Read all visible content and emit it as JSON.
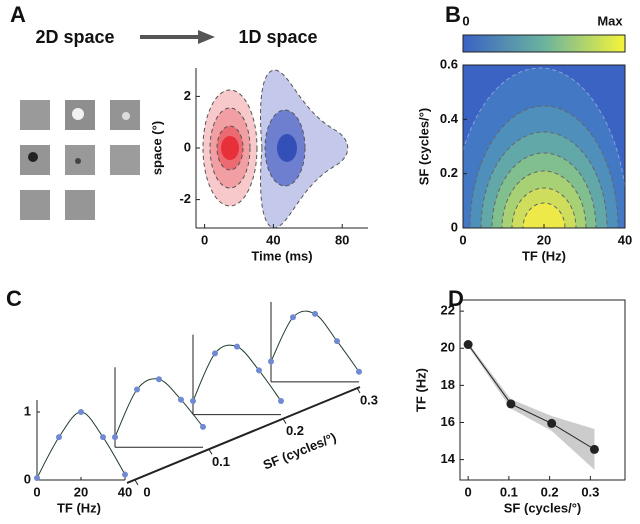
{
  "chart_data": [
    {
      "type": "contour",
      "label": "A",
      "annotations": [
        "2D space",
        "1D space"
      ],
      "xlabel": "Time (ms)",
      "ylabel": "space (°)",
      "xlim": [
        -5,
        95
      ],
      "xticks": [
        0,
        40,
        80
      ],
      "ylim": [
        -3.1,
        3.1
      ],
      "yticks": [
        -2,
        0,
        2
      ]
    },
    {
      "type": "contour",
      "label": "B",
      "colorbar_labels": [
        "0",
        "Max"
      ],
      "xlabel": "TF (Hz)",
      "ylabel": "SF (cycles/°)",
      "xlim": [
        0,
        40
      ],
      "xticks": [
        0,
        20,
        40
      ],
      "ylim": [
        0,
        0.6
      ],
      "yticks": [
        0,
        0.2,
        0.4,
        0.6
      ]
    },
    {
      "type": "waterfall",
      "label": "C",
      "xlabel": "TF (Hz)",
      "zlabel": "SF (cycles/°)",
      "xlim": [
        0,
        40
      ],
      "xticks": [
        0,
        20,
        40
      ],
      "ylim": [
        0,
        1
      ],
      "yticks": [
        0,
        1
      ],
      "zticks": [
        0,
        0.1,
        0.2,
        0.3
      ],
      "x": [
        0,
        10,
        20,
        30,
        40
      ],
      "color": "#7089d2",
      "line_color": "#1e3d2a",
      "series": [
        {
          "values": [
            0.03,
            0.63,
            1,
            0.63,
            0.08
          ]
        },
        {
          "values": [
            0.15,
            0.85,
            1,
            0.7,
            0.3
          ]
        },
        {
          "values": [
            0.2,
            0.9,
            1,
            0.65,
            0.2
          ]
        },
        {
          "values": [
            0.3,
            0.95,
            1,
            0.6,
            0.15
          ]
        }
      ]
    },
    {
      "type": "line",
      "label": "D",
      "xlabel": "SF (cycles/°)",
      "ylabel": "TF (Hz)",
      "x": [
        0,
        0.105,
        0.205,
        0.31
      ],
      "values": [
        20.2,
        17.0,
        15.95,
        14.55
      ],
      "error": [
        0.1,
        0.25,
        0.4,
        1.1
      ],
      "xlim": [
        -0.02,
        0.385
      ],
      "xticks": [
        0,
        0.1,
        0.2,
        0.3
      ],
      "ylim": [
        12.9,
        22.6
      ],
      "yticks": [
        14,
        16,
        18,
        20,
        22
      ],
      "color": "#222222",
      "band_color": "#cccccc"
    }
  ]
}
